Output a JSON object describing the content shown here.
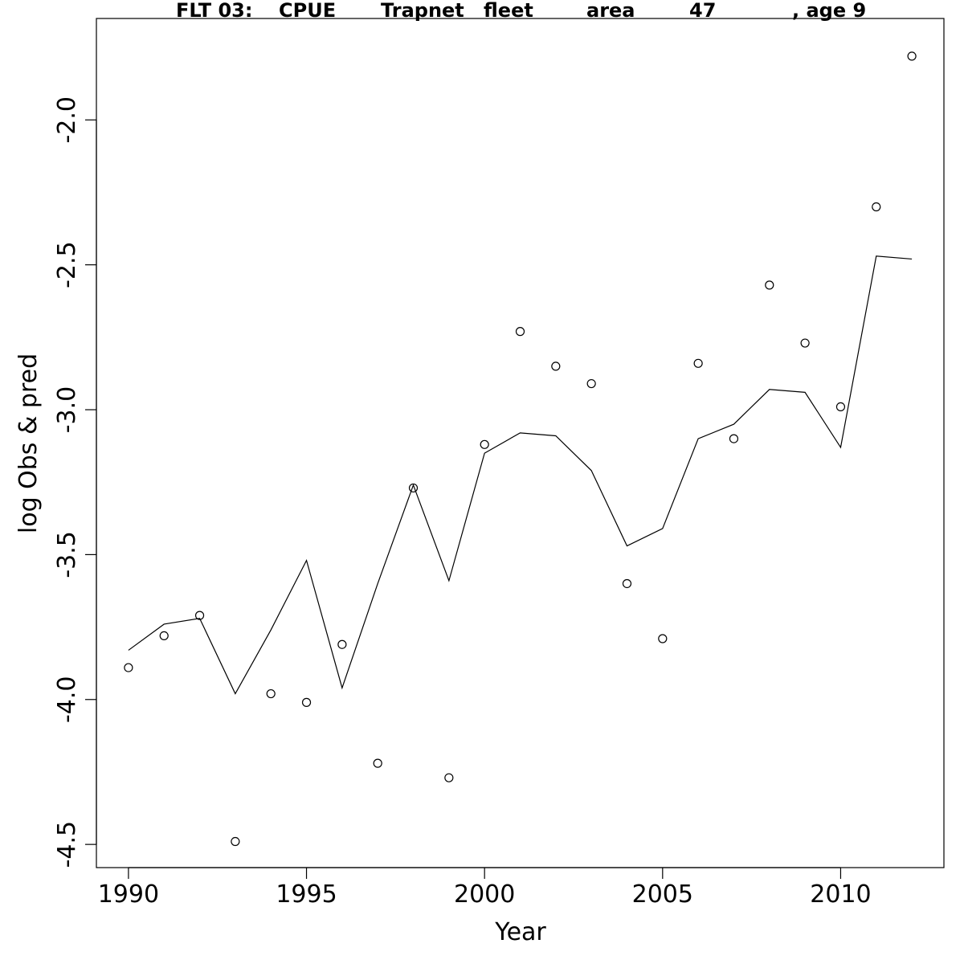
{
  "chart_data": {
    "type": "line",
    "title_parts": [
      "FLT 03:",
      "CPUE",
      "Trapnet",
      "fleet",
      "area",
      "47",
      ", age 9"
    ],
    "xlabel": "Year",
    "ylabel": "log Obs & pred",
    "xlim": [
      1989.1,
      2012.9
    ],
    "ylim": [
      -4.58,
      -1.65
    ],
    "x_ticks": [
      1990,
      1995,
      2000,
      2005,
      2010
    ],
    "y_ticks": [
      -4.5,
      -4.0,
      -3.5,
      -3.0,
      -2.5,
      -2.0
    ],
    "y_tick_labels": [
      "-4.5",
      "-4.0",
      "-3.5",
      "-3.0",
      "-2.5",
      "-2.0"
    ],
    "x": [
      1990,
      1991,
      1992,
      1993,
      1994,
      1995,
      1996,
      1997,
      1998,
      1999,
      2000,
      2001,
      2002,
      2003,
      2004,
      2005,
      2006,
      2007,
      2008,
      2009,
      2010,
      2011,
      2012
    ],
    "series": [
      {
        "style": "points",
        "values": [
          -3.89,
          -3.78,
          -3.71,
          -4.49,
          -3.98,
          -4.01,
          -3.81,
          -4.22,
          -3.27,
          -4.27,
          -3.12,
          -2.73,
          -2.85,
          -2.91,
          -3.6,
          -3.79,
          -2.84,
          -3.1,
          -2.57,
          -2.77,
          -2.99,
          -2.3,
          -1.78
        ]
      },
      {
        "style": "line",
        "values": [
          -3.83,
          -3.74,
          -3.72,
          -3.98,
          -3.76,
          -3.52,
          -3.96,
          -3.6,
          -3.26,
          -3.59,
          -3.15,
          -3.08,
          -3.09,
          -3.21,
          -3.47,
          -3.41,
          -3.1,
          -3.05,
          -2.93,
          -2.94,
          -3.13,
          -2.47,
          -2.48
        ]
      }
    ]
  }
}
